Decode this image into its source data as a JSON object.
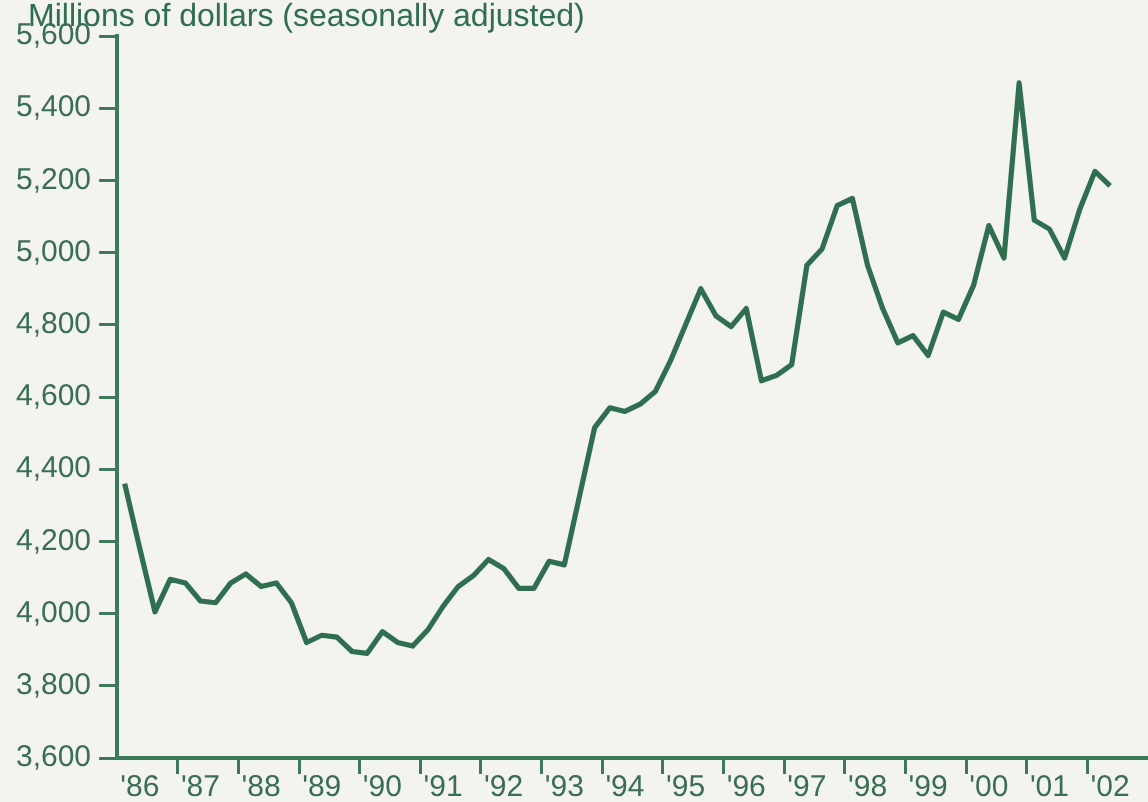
{
  "chart_data": {
    "type": "line",
    "ylabel": "Millions of dollars (seasonally adjusted)",
    "categories": [
      null,
      "'86",
      null,
      null,
      null,
      "'87",
      null,
      null,
      null,
      "'88",
      null,
      null,
      null,
      "'89",
      null,
      null,
      null,
      "'90",
      null,
      null,
      null,
      "'91",
      null,
      null,
      null,
      "'92",
      null,
      null,
      null,
      "'93",
      null,
      null,
      null,
      "'94",
      null,
      null,
      null,
      "'95",
      null,
      null,
      null,
      "'96",
      null,
      null,
      null,
      "'97",
      null,
      null,
      null,
      "'98",
      null,
      null,
      null,
      "'99",
      null,
      null,
      null,
      "'00",
      null,
      null,
      null,
      "'01",
      null,
      null,
      null,
      "'02",
      null,
      null
    ],
    "series": [
      {
        "color": "#2f6e4f",
        "values": [
          4360,
          4180,
          4005,
          4095,
          4085,
          4035,
          4030,
          4085,
          4110,
          4075,
          4085,
          4030,
          3920,
          3940,
          3935,
          3895,
          3890,
          3950,
          3920,
          3910,
          3955,
          4020,
          4075,
          4105,
          4150,
          4125,
          4070,
          4070,
          4145,
          4135,
          4325,
          4515,
          4570,
          4560,
          4580,
          4615,
          4700,
          4800,
          4900,
          4825,
          4795,
          4845,
          4645,
          4660,
          4690,
          4965,
          5010,
          5130,
          5150,
          4965,
          4845,
          4750,
          4770,
          4715,
          4835,
          4815,
          4910,
          5075,
          4985,
          5470,
          5090,
          5065,
          4985,
          5120,
          5225,
          5185,
          null,
          null
        ]
      }
    ],
    "ylim": [
      3600,
      5600
    ],
    "yticks": [
      {
        "value": 3600,
        "label": "3,600"
      },
      {
        "value": 3800,
        "label": "3,800"
      },
      {
        "value": 4000,
        "label": "4,000"
      },
      {
        "value": 4200,
        "label": "4,200"
      },
      {
        "value": 4400,
        "label": "4,400"
      },
      {
        "value": 4600,
        "label": "4,600"
      },
      {
        "value": 4800,
        "label": "4,800"
      },
      {
        "value": 5000,
        "label": "5,000"
      },
      {
        "value": 5200,
        "label": "5,200"
      },
      {
        "value": 5400,
        "label": "5,400"
      },
      {
        "value": 5600,
        "label": "5,600"
      }
    ],
    "grid": false,
    "legend": false,
    "marker": "none",
    "line_style": "solid"
  }
}
